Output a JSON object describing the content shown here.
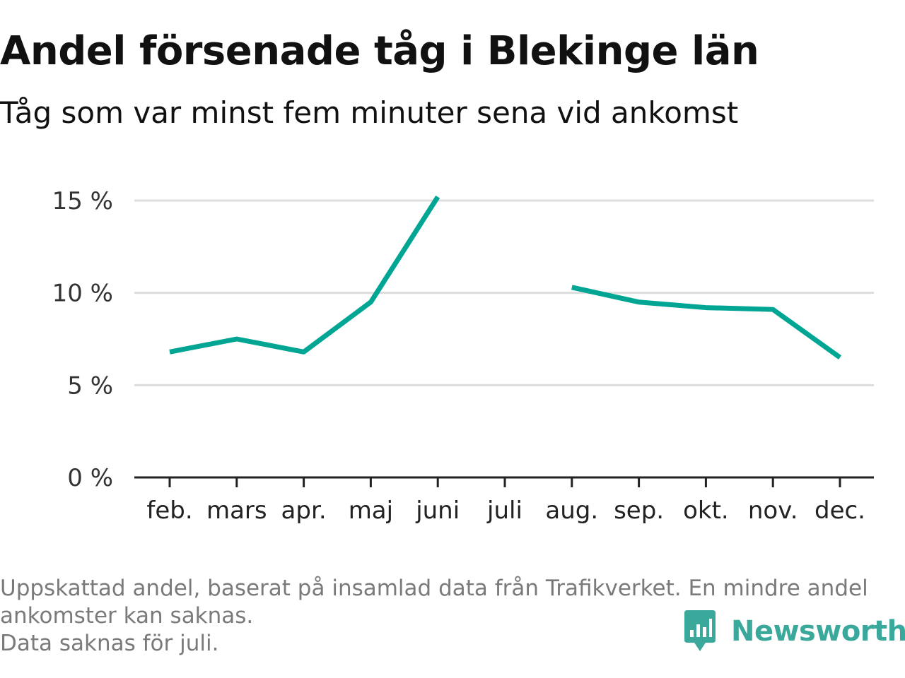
{
  "title": "Andel försenade tåg i Blekinge län",
  "subtitle": "Tåg som var minst fem minuter sena vid ankomst",
  "chart_data": {
    "type": "line",
    "categories": [
      "feb.",
      "mars",
      "apr.",
      "maj",
      "juni",
      "juli",
      "aug.",
      "sep.",
      "okt.",
      "nov.",
      "dec."
    ],
    "series": [
      {
        "values": [
          6.8,
          7.5,
          6.8,
          9.5,
          15.2,
          null,
          10.3,
          9.5,
          9.2,
          9.1,
          6.5
        ]
      }
    ],
    "ylim": [
      0,
      15
    ],
    "yticks": [
      0,
      5,
      10,
      15
    ],
    "ytick_labels": [
      "0 %",
      "5 %",
      "10 %",
      "15 %"
    ],
    "grid": true,
    "line_color": "#00a693"
  },
  "footnote": {
    "lines": [
      "Uppskattad andel, baserat på insamlad data från Trafikverket. En mindre andel",
      "ankomster kan saknas.",
      "Data saknas för juli."
    ]
  },
  "brand": {
    "name": "Newsworthy",
    "icon": "newsworthy-logo-icon",
    "color": "#3aa89a"
  }
}
